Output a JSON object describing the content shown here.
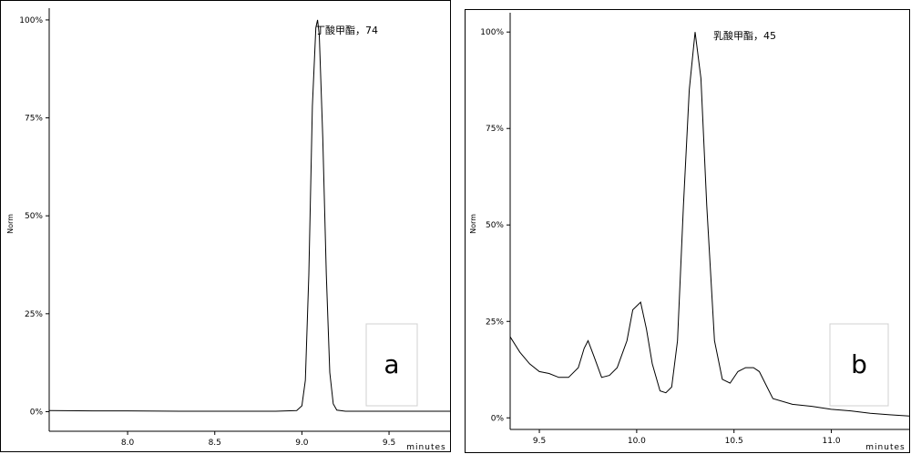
{
  "chart_data": [
    {
      "type": "line",
      "label_letter": "a",
      "xlabel": "minutes",
      "ylabel": "Norm",
      "xlim": [
        7.55,
        9.85
      ],
      "ylim": [
        -5,
        103
      ],
      "x_ticks": [
        8.0,
        8.5,
        9.0,
        9.5
      ],
      "x_tick_labels": [
        "8.0",
        "8.5",
        "9.0",
        "9.5"
      ],
      "y_ticks": [
        0,
        25,
        50,
        75,
        100
      ],
      "y_tick_labels": [
        "0%",
        "25%",
        "50%",
        "75%",
        "100%"
      ],
      "annotation": {
        "text": "丁酸甲酯，74",
        "x": 9.09,
        "y": 100
      },
      "series": [
        {
          "x": [
            7.55,
            7.8,
            8.0,
            8.3,
            8.6,
            8.85,
            8.97,
            9.0,
            9.02,
            9.04,
            9.06,
            9.08,
            9.09,
            9.1,
            9.12,
            9.14,
            9.16,
            9.18,
            9.2,
            9.25,
            9.5,
            9.85
          ],
          "y": [
            0.3,
            0.2,
            0.2,
            0.1,
            0.1,
            0.1,
            0.3,
            1.5,
            8,
            35,
            78,
            98,
            100,
            96,
            70,
            35,
            10,
            2,
            0.4,
            0.1,
            0.1,
            0.1
          ]
        }
      ]
    },
    {
      "type": "line",
      "label_letter": "b",
      "xlabel": "minutes",
      "ylabel": "Norm",
      "xlim": [
        9.35,
        11.4
      ],
      "ylim": [
        -3,
        105
      ],
      "x_ticks": [
        9.5,
        10.0,
        10.5,
        11.0
      ],
      "x_tick_labels": [
        "9.5",
        "10.0",
        "10.5",
        "11.0"
      ],
      "y_ticks": [
        0,
        25,
        50,
        75,
        100
      ],
      "y_tick_labels": [
        "0%",
        "25%",
        "50%",
        "75%",
        "100%"
      ],
      "annotation": {
        "text": "乳酸甲酯，45",
        "x": 10.3,
        "y": 100
      },
      "series": [
        {
          "x": [
            9.35,
            9.4,
            9.45,
            9.5,
            9.55,
            9.6,
            9.65,
            9.7,
            9.73,
            9.75,
            9.78,
            9.82,
            9.86,
            9.9,
            9.95,
            9.98,
            10.02,
            10.05,
            10.08,
            10.12,
            10.15,
            10.18,
            10.21,
            10.24,
            10.27,
            10.3,
            10.33,
            10.36,
            10.4,
            10.44,
            10.48,
            10.52,
            10.56,
            10.6,
            10.63,
            10.67,
            10.7,
            10.8,
            10.9,
            11.0,
            11.1,
            11.2,
            11.3,
            11.4
          ],
          "y": [
            21,
            17,
            14,
            12,
            11.5,
            10.5,
            10.5,
            13,
            18,
            20,
            16,
            10.5,
            11,
            13,
            20,
            28,
            30,
            23,
            14,
            7,
            6.5,
            8,
            20,
            55,
            85,
            100,
            88,
            55,
            20,
            10,
            9,
            12,
            13,
            13,
            12,
            8,
            5,
            3.5,
            3,
            2.2,
            1.8,
            1.2,
            0.8,
            0.5
          ]
        }
      ]
    }
  ]
}
